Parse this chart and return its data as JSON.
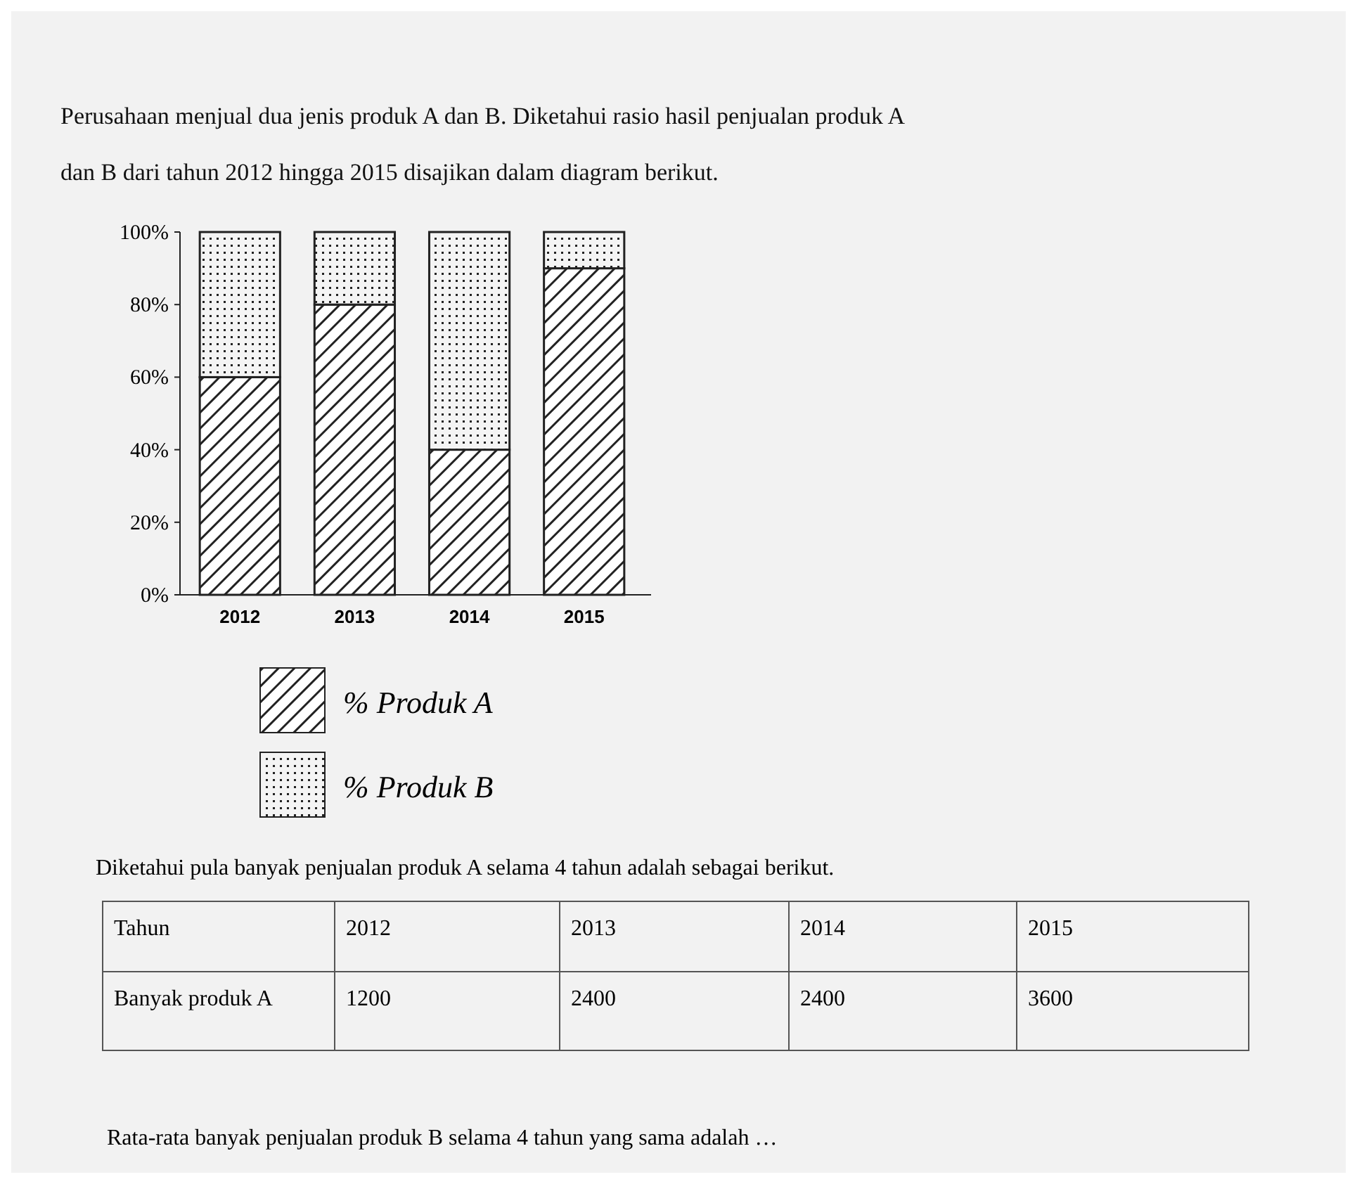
{
  "chart_data": {
    "type": "bar",
    "stacked": true,
    "title": "Perusahaan menjual dua jenis produk A dan B. Diketahui rasio hasil penjualan produk A dan B dari tahun 2012 hingga 2015 disajikan dalam diagram berikut.",
    "categories": [
      "2012",
      "2013",
      "2014",
      "2015"
    ],
    "series": [
      {
        "name": "% Produk A",
        "color": "#222222",
        "values": [
          60,
          80,
          40,
          90
        ]
      },
      {
        "name": "% Produk B",
        "color": "#222222",
        "values": [
          40,
          20,
          60,
          10
        ]
      }
    ],
    "ylim": [
      0,
      100
    ],
    "yticks": [
      {
        "value": 0,
        "label": "0%"
      },
      {
        "value": 20,
        "label": "20%"
      },
      {
        "value": 40,
        "label": "40%"
      },
      {
        "value": 60,
        "label": "60%"
      },
      {
        "value": 80,
        "label": "80%"
      },
      {
        "value": 100,
        "label": "100%"
      }
    ],
    "legend": "bottom",
    "annotations": [
      "Diketahui pula banyak penjualan produk A selama 4 tahun adalah sebagai berikut.",
      "Tahun",
      "2012",
      "2013",
      "2014",
      "2015",
      "Banyak produk A",
      "1200",
      "2400",
      "2400",
      "3600",
      "Rata-rata banyak penjualan produk B selama 4 tahun yang sama adalah …"
    ]
  }
}
